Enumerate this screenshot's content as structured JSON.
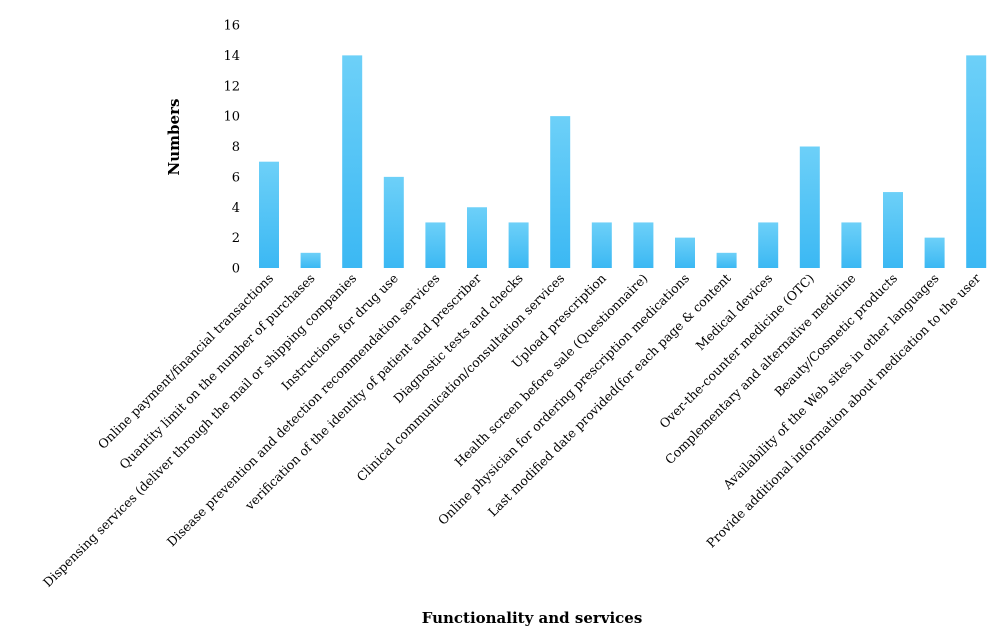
{
  "chart_data": {
    "type": "bar",
    "title": "",
    "xlabel": "Functionality and services",
    "ylabel": "Numbers",
    "ylim": [
      0,
      16
    ],
    "yticks": [
      0,
      2,
      4,
      6,
      8,
      10,
      12,
      14,
      16
    ],
    "grid": false,
    "legend": "none",
    "bar_color_top": "#6dd0f8",
    "bar_color_bottom": "#3bb8f3",
    "categories": [
      "Online payment/financial transactions",
      "Quantity limit on the number of purchases",
      "Dispensing services (deliver through the mail or shipping companies",
      "Instructions for drug use",
      "Disease prevention and detection recommendation services",
      "verification of the identity of patient and prescriber",
      "Diagnostic tests and checks",
      "Clinical communication/consultation services",
      "Upload prescription",
      "Health screen before sale (Questionnaire)",
      "Online physician for ordering prescription medications",
      "Last modified date provided(for each page & content",
      "Medical devices",
      "Over-the-counter medicine (OTC)",
      "Complementary and alternative medicine",
      "Beauty/Cosmetic products",
      "Availability of the Web sites in other languages",
      "Provide additional information about medication to the user"
    ],
    "values": [
      7,
      1,
      14,
      6,
      3,
      4,
      3,
      10,
      3,
      3,
      2,
      1,
      3,
      8,
      3,
      5,
      2,
      14
    ]
  }
}
